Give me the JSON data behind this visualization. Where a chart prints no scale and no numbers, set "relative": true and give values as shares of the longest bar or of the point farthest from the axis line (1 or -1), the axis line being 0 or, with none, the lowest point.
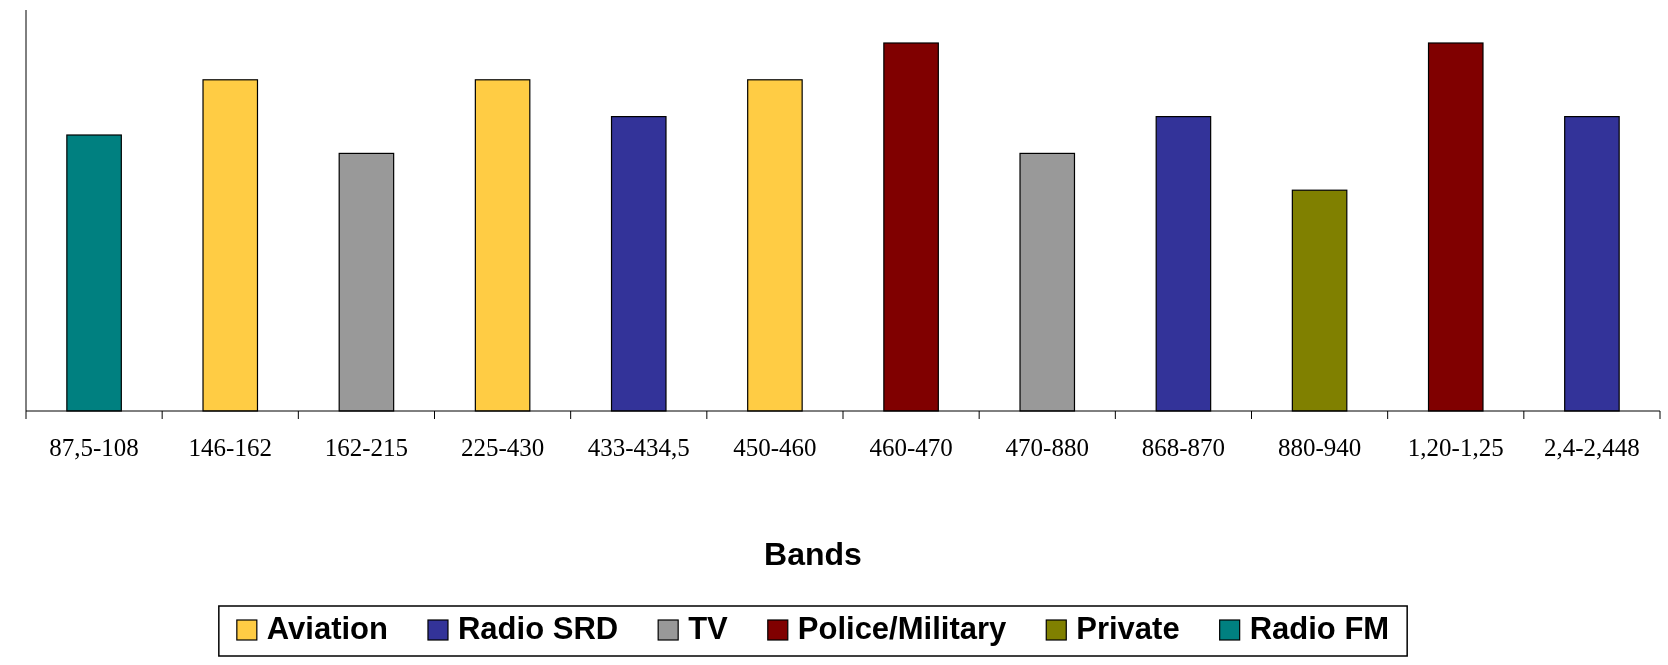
{
  "chart_data": {
    "type": "bar",
    "relative": true,
    "xlabel": "Bands",
    "legend": "bottom",
    "categories": [
      "87,5-108",
      "146-162",
      "162-215",
      "225-430",
      "433-434,5",
      "450-460",
      "460-470",
      "470-880",
      "868-870",
      "880-940",
      "1,20-1,25",
      "2,4-2,448"
    ],
    "series": [
      {
        "name": "Aviation",
        "color": "#ffcc44",
        "values": [
          null,
          0.9,
          null,
          0.9,
          null,
          0.9,
          null,
          null,
          null,
          null,
          null,
          null
        ]
      },
      {
        "name": "Radio SRD",
        "color": "#333399",
        "values": [
          null,
          null,
          null,
          null,
          0.8,
          null,
          null,
          null,
          0.8,
          null,
          null,
          0.8
        ]
      },
      {
        "name": "TV",
        "color": "#999999",
        "values": [
          null,
          null,
          0.7,
          null,
          null,
          null,
          null,
          0.7,
          null,
          null,
          null,
          null
        ]
      },
      {
        "name": "Police/Military",
        "color": "#800000",
        "values": [
          null,
          null,
          null,
          null,
          null,
          null,
          1,
          null,
          null,
          null,
          1,
          null
        ]
      },
      {
        "name": "Private",
        "color": "#808000",
        "values": [
          null,
          null,
          null,
          null,
          null,
          null,
          null,
          null,
          null,
          0.6,
          null,
          null
        ]
      },
      {
        "name": "Radio FM",
        "color": "#008080",
        "values": [
          0.75,
          null,
          null,
          null,
          null,
          null,
          null,
          null,
          null,
          null,
          null,
          null
        ]
      }
    ]
  }
}
